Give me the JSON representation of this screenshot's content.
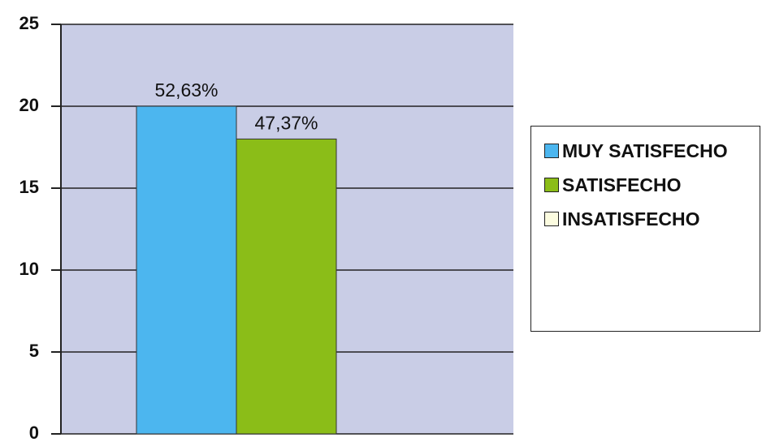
{
  "chart_data": {
    "type": "bar",
    "categories": [
      null
    ],
    "series": [
      {
        "name": "MUY SATISFECHO",
        "color": "#4cb6ef",
        "values": [
          20
        ]
      },
      {
        "name": "SATISFECHO",
        "color": "#8bbd18",
        "values": [
          18
        ]
      },
      {
        "name": "INSATISFECHO",
        "color": "#fcfce0",
        "values": [
          0
        ]
      }
    ],
    "annotations": [
      "52,63%",
      "47,37%"
    ],
    "ylim": [
      0,
      25
    ],
    "yticks": [
      0,
      5,
      10,
      15,
      20,
      25
    ],
    "grid": true,
    "legend": "right",
    "plot_background": "#c9cde6"
  }
}
